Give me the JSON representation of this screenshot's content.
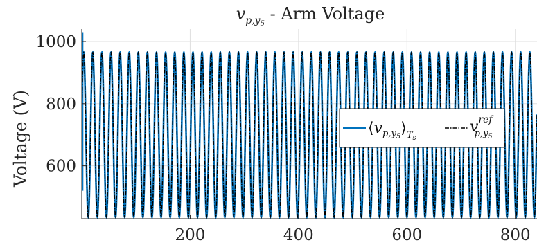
{
  "chart_data": {
    "type": "line",
    "title": {
      "var": "v",
      "sub": "p,y",
      "subsub": "5",
      "rest": " - Arm Voltage"
    },
    "ylabel": "Voltage (V)",
    "xlabel": "",
    "xlim": [
      0,
      840
    ],
    "ylim": [
      430,
      1040
    ],
    "xticks": [
      200,
      400,
      600,
      800
    ],
    "yticks": [
      600,
      800,
      1000
    ],
    "grid": true,
    "legend_position": "right-center",
    "signal": {
      "min": 435,
      "max": 965,
      "cycles": 50,
      "initial_spike": 1030
    },
    "series": [
      {
        "name": "⟨v_{p,y5}⟩_{Ts}",
        "legend": {
          "open": "⟨",
          "var": "v",
          "sub": "p,y",
          "subsub": "5",
          "close": "⟩",
          "closesub": "T",
          "closesubsub": "s"
        },
        "color": "#0072BD",
        "style": "solid"
      },
      {
        "name": "v^{ref}_{p,y5}",
        "legend": {
          "var": "v",
          "sup": "ref",
          "sub": "p,y",
          "subsub": "5"
        },
        "color": "#000000",
        "style": "dash-dot"
      }
    ]
  }
}
